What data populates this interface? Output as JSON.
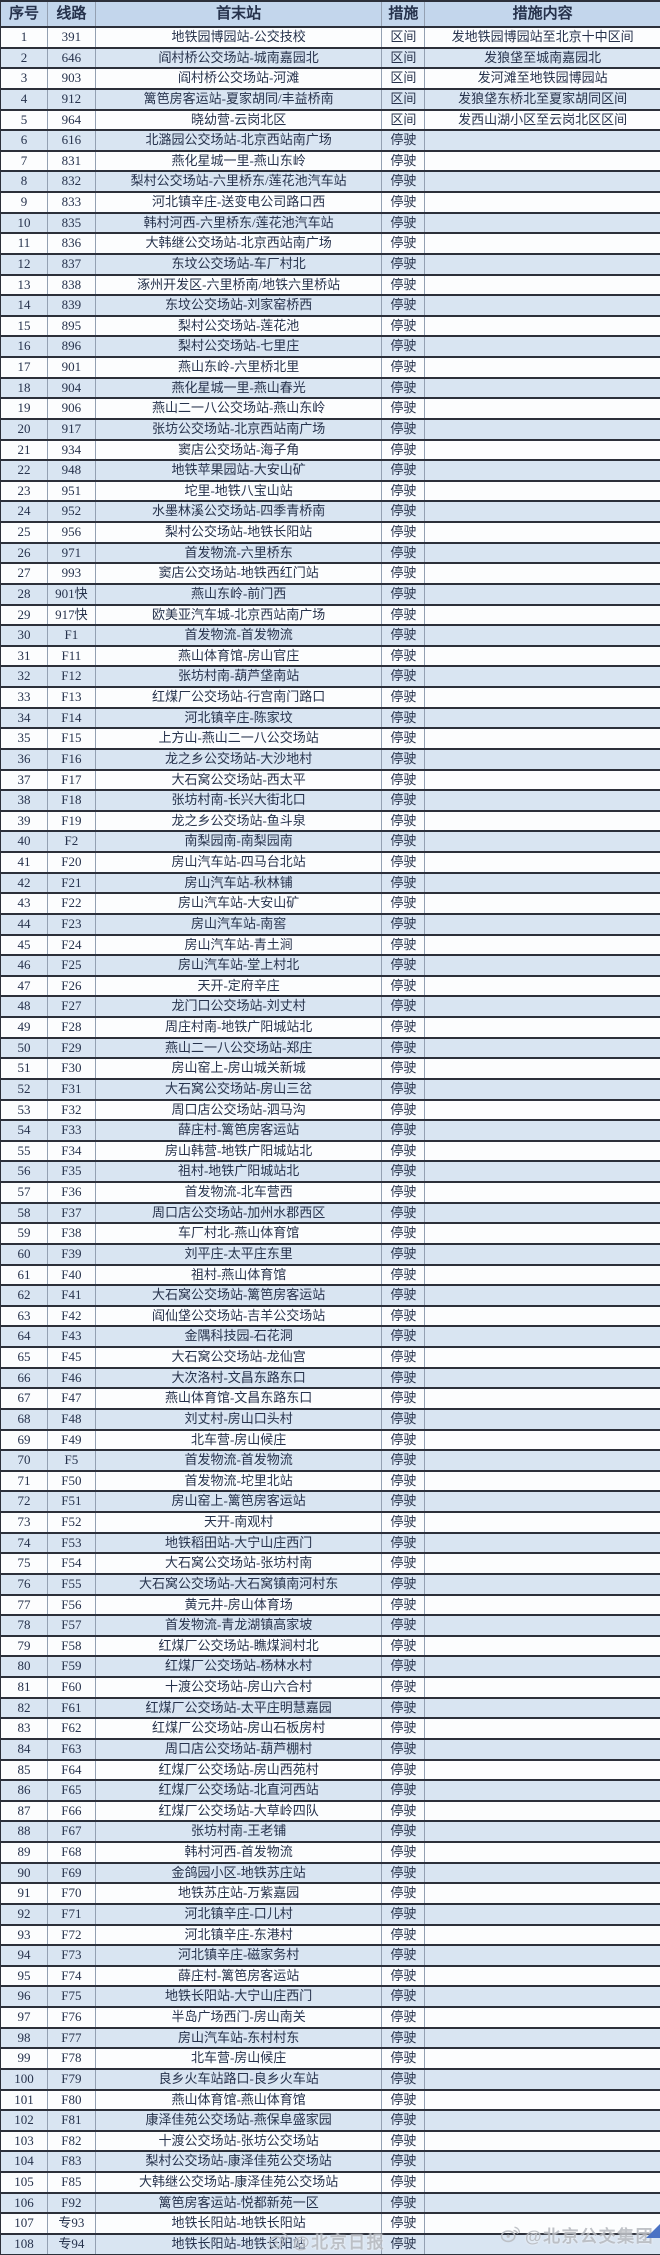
{
  "colors": {
    "header_bg": "#c3d6ec",
    "stripe_bg": "#d9e5f2",
    "row_bg": "#fcfdfe",
    "border_dark": "#2c303a",
    "border_light": "#93a0b2",
    "text": "#26324c",
    "watermark": "#b9bcc2",
    "corner_accent": "#4a72c4"
  },
  "chart_data": {
    "type": "table",
    "columns": [
      "序号",
      "线路",
      "首末站",
      "措施",
      "措施内容"
    ],
    "rows": [
      [
        "1",
        "391",
        "地铁园博园站-公交技校",
        "区间",
        "发地铁园博园站至北京十中区间"
      ],
      [
        "2",
        "646",
        "阎村桥公交场站-城南嘉园北",
        "区间",
        "发狼垡至城南嘉园北"
      ],
      [
        "3",
        "903",
        "阎村桥公交场站-河滩",
        "区间",
        "发河滩至地铁园博园站"
      ],
      [
        "4",
        "912",
        "篱笆房客运站-夏家胡同/丰益桥南",
        "区间",
        "发狼垡东桥北至夏家胡同区间"
      ],
      [
        "5",
        "964",
        "晓幼营-云岗北区",
        "区间",
        "发西山湖小区至云岗北区区间"
      ],
      [
        "6",
        "616",
        "北潞园公交场站-北京西站南广场",
        "停驶",
        ""
      ],
      [
        "7",
        "831",
        "燕化星城一里-燕山东岭",
        "停驶",
        ""
      ],
      [
        "8",
        "832",
        "梨村公交场站-六里桥东/莲花池汽车站",
        "停驶",
        ""
      ],
      [
        "9",
        "833",
        "河北镇辛庄-送变电公司路口西",
        "停驶",
        ""
      ],
      [
        "10",
        "835",
        "韩村河西-六里桥东/莲花池汽车站",
        "停驶",
        ""
      ],
      [
        "11",
        "836",
        "大韩继公交场站-北京西站南广场",
        "停驶",
        ""
      ],
      [
        "12",
        "837",
        "东坟公交场站-车厂村北",
        "停驶",
        ""
      ],
      [
        "13",
        "838",
        "涿州开发区-六里桥南/地铁六里桥站",
        "停驶",
        ""
      ],
      [
        "14",
        "839",
        "东坟公交场站-刘家窑桥西",
        "停驶",
        ""
      ],
      [
        "15",
        "895",
        "梨村公交场站-莲花池",
        "停驶",
        ""
      ],
      [
        "16",
        "896",
        "梨村公交场站-七里庄",
        "停驶",
        ""
      ],
      [
        "17",
        "901",
        "燕山东岭-六里桥北里",
        "停驶",
        ""
      ],
      [
        "18",
        "904",
        "燕化星城一里-燕山春光",
        "停驶",
        ""
      ],
      [
        "19",
        "906",
        "燕山二一八公交场站-燕山东岭",
        "停驶",
        ""
      ],
      [
        "20",
        "917",
        "张坊公交场站-北京西站南广场",
        "停驶",
        ""
      ],
      [
        "21",
        "934",
        "窦店公交场站-海子角",
        "停驶",
        ""
      ],
      [
        "22",
        "948",
        "地铁苹果园站-大安山矿",
        "停驶",
        ""
      ],
      [
        "23",
        "951",
        "坨里-地铁八宝山站",
        "停驶",
        ""
      ],
      [
        "24",
        "952",
        "水墨林溪公交场站-四季青桥南",
        "停驶",
        ""
      ],
      [
        "25",
        "956",
        "梨村公交场站-地铁长阳站",
        "停驶",
        ""
      ],
      [
        "26",
        "971",
        "首发物流-六里桥东",
        "停驶",
        ""
      ],
      [
        "27",
        "993",
        "窦店公交场站-地铁西红门站",
        "停驶",
        ""
      ],
      [
        "28",
        "901快",
        "燕山东岭-前门西",
        "停驶",
        ""
      ],
      [
        "29",
        "917快",
        "欧美亚汽车城-北京西站南广场",
        "停驶",
        ""
      ],
      [
        "30",
        "F1",
        "首发物流-首发物流",
        "停驶",
        ""
      ],
      [
        "31",
        "F11",
        "燕山体育馆-房山官庄",
        "停驶",
        ""
      ],
      [
        "32",
        "F12",
        "张坊村南-葫芦垡南站",
        "停驶",
        ""
      ],
      [
        "33",
        "F13",
        "红煤厂公交场站-行宫南门路口",
        "停驶",
        ""
      ],
      [
        "34",
        "F14",
        "河北镇辛庄-陈家坟",
        "停驶",
        ""
      ],
      [
        "35",
        "F15",
        "上方山-燕山二一八公交场站",
        "停驶",
        ""
      ],
      [
        "36",
        "F16",
        "龙之乡公交场站-大沙地村",
        "停驶",
        ""
      ],
      [
        "37",
        "F17",
        "大石窝公交场站-西太平",
        "停驶",
        ""
      ],
      [
        "38",
        "F18",
        "张坊村南-长兴大街北口",
        "停驶",
        ""
      ],
      [
        "39",
        "F19",
        "龙之乡公交场站-鱼斗泉",
        "停驶",
        ""
      ],
      [
        "40",
        "F2",
        "南梨园南-南梨园南",
        "停驶",
        ""
      ],
      [
        "41",
        "F20",
        "房山汽车站-四马台北站",
        "停驶",
        ""
      ],
      [
        "42",
        "F21",
        "房山汽车站-秋林铺",
        "停驶",
        ""
      ],
      [
        "43",
        "F22",
        "房山汽车站-大安山矿",
        "停驶",
        ""
      ],
      [
        "44",
        "F23",
        "房山汽车站-南窖",
        "停驶",
        ""
      ],
      [
        "45",
        "F24",
        "房山汽车站-青土涧",
        "停驶",
        ""
      ],
      [
        "46",
        "F25",
        "房山汽车站-堂上村北",
        "停驶",
        ""
      ],
      [
        "47",
        "F26",
        "天开-定府辛庄",
        "停驶",
        ""
      ],
      [
        "48",
        "F27",
        "龙门口公交场站-刘丈村",
        "停驶",
        ""
      ],
      [
        "49",
        "F28",
        "周庄村南-地铁广阳城站北",
        "停驶",
        ""
      ],
      [
        "50",
        "F29",
        "燕山二一八公交场站-郑庄",
        "停驶",
        ""
      ],
      [
        "51",
        "F30",
        "房山窑上-房山城关新城",
        "停驶",
        ""
      ],
      [
        "52",
        "F31",
        "大石窝公交场站-房山三岔",
        "停驶",
        ""
      ],
      [
        "53",
        "F32",
        "周口店公交场站-泗马沟",
        "停驶",
        ""
      ],
      [
        "54",
        "F33",
        "薛庄村-篱笆房客运站",
        "停驶",
        ""
      ],
      [
        "55",
        "F34",
        "房山韩营-地铁广阳城站北",
        "停驶",
        ""
      ],
      [
        "56",
        "F35",
        "祖村-地铁广阳城站北",
        "停驶",
        ""
      ],
      [
        "57",
        "F36",
        "首发物流-北车营西",
        "停驶",
        ""
      ],
      [
        "58",
        "F37",
        "周口店公交场站-加州水郡西区",
        "停驶",
        ""
      ],
      [
        "59",
        "F38",
        "车厂村北-燕山体育馆",
        "停驶",
        ""
      ],
      [
        "60",
        "F39",
        "刘平庄-太平庄东里",
        "停驶",
        ""
      ],
      [
        "61",
        "F40",
        "祖村-燕山体育馆",
        "停驶",
        ""
      ],
      [
        "62",
        "F41",
        "大石窝公交场站-篱笆房客运站",
        "停驶",
        ""
      ],
      [
        "63",
        "F42",
        "阎仙垡公交场站-吉羊公交场站",
        "停驶",
        ""
      ],
      [
        "64",
        "F43",
        "金隅科技园-石花洞",
        "停驶",
        ""
      ],
      [
        "65",
        "F45",
        "大石窝公交场站-龙仙宫",
        "停驶",
        ""
      ],
      [
        "66",
        "F46",
        "大次洛村-文昌东路东口",
        "停驶",
        ""
      ],
      [
        "67",
        "F47",
        "燕山体育馆-文昌东路东口",
        "停驶",
        ""
      ],
      [
        "68",
        "F48",
        "刘丈村-房山口头村",
        "停驶",
        ""
      ],
      [
        "69",
        "F49",
        "北车营-房山候庄",
        "停驶",
        ""
      ],
      [
        "70",
        "F5",
        "首发物流-首发物流",
        "停驶",
        ""
      ],
      [
        "71",
        "F50",
        "首发物流-坨里北站",
        "停驶",
        ""
      ],
      [
        "72",
        "F51",
        "房山窑上-篱笆房客运站",
        "停驶",
        ""
      ],
      [
        "73",
        "F52",
        "天开-南观村",
        "停驶",
        ""
      ],
      [
        "74",
        "F53",
        "地铁稻田站-大宁山庄西门",
        "停驶",
        ""
      ],
      [
        "75",
        "F54",
        "大石窝公交场站-张坊村南",
        "停驶",
        ""
      ],
      [
        "76",
        "F55",
        "大石窝公交场站-大石窝镇南河村东",
        "停驶",
        ""
      ],
      [
        "77",
        "F56",
        "黄元井-房山体育场",
        "停驶",
        ""
      ],
      [
        "78",
        "F57",
        "首发物流-青龙湖镇高家坡",
        "停驶",
        ""
      ],
      [
        "79",
        "F58",
        "红煤厂公交场站-瞧煤涧村北",
        "停驶",
        ""
      ],
      [
        "80",
        "F59",
        "红煤厂公交场站-杨林水村",
        "停驶",
        ""
      ],
      [
        "81",
        "F60",
        "十渡公交场站-房山六合村",
        "停驶",
        ""
      ],
      [
        "82",
        "F61",
        "红煤厂公交场站-太平庄明慧嘉园",
        "停驶",
        ""
      ],
      [
        "83",
        "F62",
        "红煤厂公交场站-房山石板房村",
        "停驶",
        ""
      ],
      [
        "84",
        "F63",
        "周口店公交场站-葫芦棚村",
        "停驶",
        ""
      ],
      [
        "85",
        "F64",
        "红煤厂公交场站-房山西苑村",
        "停驶",
        ""
      ],
      [
        "86",
        "F65",
        "红煤厂公交场站-北直河西站",
        "停驶",
        ""
      ],
      [
        "87",
        "F66",
        "红煤厂公交场站-大草岭四队",
        "停驶",
        ""
      ],
      [
        "88",
        "F67",
        "张坊村南-王老铺",
        "停驶",
        ""
      ],
      [
        "89",
        "F68",
        "韩村河西-首发物流",
        "停驶",
        ""
      ],
      [
        "90",
        "F69",
        "金鸽园小区-地铁苏庄站",
        "停驶",
        ""
      ],
      [
        "91",
        "F70",
        "地铁苏庄站-万紫嘉园",
        "停驶",
        ""
      ],
      [
        "92",
        "F71",
        "河北镇辛庄-口儿村",
        "停驶",
        ""
      ],
      [
        "93",
        "F72",
        "河北镇辛庄-东港村",
        "停驶",
        ""
      ],
      [
        "94",
        "F73",
        "河北镇辛庄-磁家务村",
        "停驶",
        ""
      ],
      [
        "95",
        "F74",
        "薛庄村-篱笆房客运站",
        "停驶",
        ""
      ],
      [
        "96",
        "F75",
        "地铁长阳站-大宁山庄西门",
        "停驶",
        ""
      ],
      [
        "97",
        "F76",
        "半岛广场西门-房山南关",
        "停驶",
        ""
      ],
      [
        "98",
        "F77",
        "房山汽车站-东村村东",
        "停驶",
        ""
      ],
      [
        "99",
        "F78",
        "北车营-房山候庄",
        "停驶",
        ""
      ],
      [
        "100",
        "F79",
        "良乡火车站路口-良乡火车站",
        "停驶",
        ""
      ],
      [
        "101",
        "F80",
        "燕山体育馆-燕山体育馆",
        "停驶",
        ""
      ],
      [
        "102",
        "F81",
        "康泽佳苑公交场站-燕保阜盛家园",
        "停驶",
        ""
      ],
      [
        "103",
        "F82",
        "十渡公交场站-张坊公交场站",
        "停驶",
        ""
      ],
      [
        "104",
        "F83",
        "梨村公交场站-康泽佳苑公交场站",
        "停驶",
        ""
      ],
      [
        "105",
        "F85",
        "大韩继公交场站-康泽佳苑公交场站",
        "停驶",
        ""
      ],
      [
        "106",
        "F92",
        "篱笆房客运站-悦都新苑一区",
        "停驶",
        ""
      ],
      [
        "107",
        "专93",
        "地铁长阳站-地铁长阳站",
        "停驶",
        ""
      ],
      [
        "108",
        "专94",
        "地铁长阳站-地铁长阳站",
        "停驶",
        ""
      ]
    ]
  },
  "watermarks": [
    {
      "icon": "weibo-icon",
      "label": "@北京日报"
    },
    {
      "icon": "weibo-icon",
      "label": "@北京公交集团"
    }
  ]
}
